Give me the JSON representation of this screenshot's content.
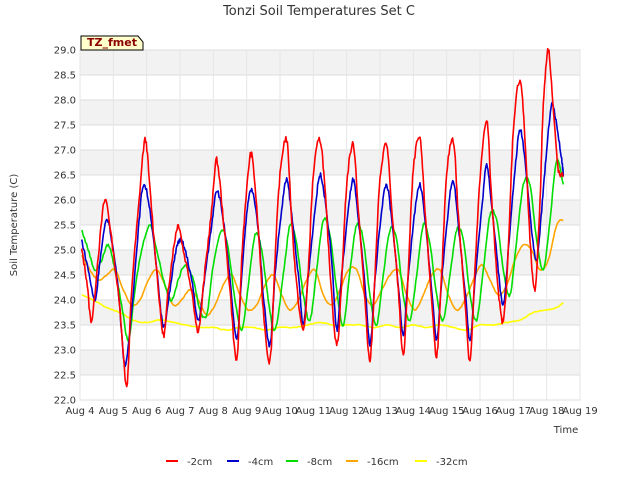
{
  "chart_data": {
    "type": "line",
    "title": "Tonzi Soil Temperatures Set C",
    "xlabel": "Time",
    "ylabel": "Soil Temperature (C)",
    "badge": "TZ_fmet",
    "x_tick_labels": [
      "Aug 4",
      "Aug 5",
      "Aug 6",
      "Aug 7",
      "Aug 8",
      "Aug 9",
      "Aug 10",
      "Aug 11",
      "Aug 12",
      "Aug 13",
      "Aug 14",
      "Aug 15",
      "Aug 16",
      "Aug 17",
      "Aug 18",
      "Aug 19"
    ],
    "xlim": [
      4,
      19
    ],
    "ylim": [
      22.0,
      29.0
    ],
    "y_ticks": [
      22.0,
      22.5,
      23.0,
      23.5,
      24.0,
      24.5,
      25.0,
      25.5,
      26.0,
      26.5,
      27.0,
      27.5,
      28.0,
      28.5,
      29.0
    ],
    "y_tick_labels": [
      "22.0",
      "22.5",
      "23.0",
      "23.5",
      "24.0",
      "24.5",
      "25.0",
      "25.5",
      "26.0",
      "26.5",
      "27.0",
      "27.5",
      "28.0",
      "28.5",
      "29.0"
    ],
    "grid": true,
    "legend_position": "bottom",
    "series": [
      {
        "name": "-2cm",
        "color": "#ff0000",
        "x": [
          4.05,
          4.2,
          4.35,
          4.55,
          4.75,
          4.95,
          5.2,
          5.4,
          5.55,
          5.75,
          5.95,
          6.1,
          6.3,
          6.5,
          6.65,
          6.8,
          6.95,
          7.1,
          7.35,
          7.55,
          7.75,
          7.95,
          8.1,
          8.3,
          8.5,
          8.7,
          8.85,
          9.0,
          9.15,
          9.35,
          9.5,
          9.7,
          9.85,
          10.0,
          10.2,
          10.35,
          10.5,
          10.7,
          10.85,
          11.0,
          11.2,
          11.35,
          11.5,
          11.7,
          11.85,
          12.0,
          12.2,
          12.35,
          12.55,
          12.7,
          12.85,
          13.0,
          13.2,
          13.35,
          13.55,
          13.7,
          13.85,
          14.0,
          14.2,
          14.35,
          14.55,
          14.7,
          14.85,
          15.0,
          15.2,
          15.35,
          15.55,
          15.7,
          15.85,
          16.0,
          16.2,
          16.35,
          16.55,
          16.7,
          16.85,
          17.0,
          17.2,
          17.35,
          17.5,
          17.65,
          17.8,
          17.9,
          18.05,
          18.2,
          18.35,
          18.5
        ],
        "y": [
          25.0,
          24.4,
          23.6,
          24.9,
          26.0,
          25.2,
          23.8,
          22.3,
          24.2,
          25.8,
          27.2,
          26.2,
          24.6,
          23.3,
          24.2,
          25.0,
          25.5,
          25.0,
          24.2,
          23.4,
          24.6,
          25.8,
          26.8,
          25.6,
          24.2,
          22.8,
          24.8,
          26.2,
          26.9,
          25.4,
          23.8,
          22.8,
          24.8,
          26.5,
          27.2,
          25.6,
          24.3,
          23.4,
          24.6,
          26.5,
          27.2,
          26.2,
          24.6,
          23.1,
          24.4,
          26.3,
          27.1,
          25.8,
          24.0,
          22.8,
          24.5,
          26.4,
          27.1,
          25.8,
          24.2,
          22.9,
          24.6,
          26.6,
          27.2,
          25.8,
          24.0,
          22.9,
          24.5,
          26.5,
          27.2,
          25.7,
          24.0,
          22.8,
          24.6,
          26.4,
          27.6,
          26.0,
          24.2,
          23.6,
          25.0,
          27.4,
          28.4,
          27.2,
          25.2,
          24.2,
          26.0,
          27.9,
          29.0,
          27.8,
          26.6,
          26.5
        ]
      },
      {
        "name": "-4cm",
        "color": "#0000cc",
        "x": [
          4.05,
          4.25,
          4.45,
          4.6,
          4.8,
          4.95,
          5.15,
          5.35,
          5.55,
          5.75,
          5.9,
          6.1,
          6.3,
          6.5,
          6.7,
          6.85,
          7.0,
          7.15,
          7.35,
          7.55,
          7.75,
          7.95,
          8.1,
          8.3,
          8.5,
          8.7,
          8.85,
          9.0,
          9.15,
          9.35,
          9.5,
          9.7,
          9.85,
          10.05,
          10.2,
          10.35,
          10.55,
          10.7,
          10.85,
          11.05,
          11.2,
          11.35,
          11.55,
          11.7,
          11.85,
          12.05,
          12.2,
          12.35,
          12.55,
          12.7,
          12.85,
          13.05,
          13.2,
          13.35,
          13.55,
          13.7,
          13.85,
          14.05,
          14.2,
          14.35,
          14.55,
          14.7,
          14.85,
          15.05,
          15.2,
          15.35,
          15.55,
          15.7,
          15.85,
          16.05,
          16.2,
          16.35,
          16.55,
          16.7,
          16.85,
          17.05,
          17.2,
          17.35,
          17.55,
          17.7,
          17.85,
          18.0,
          18.15,
          18.3,
          18.45,
          18.5
        ],
        "y": [
          25.2,
          24.6,
          24.0,
          24.8,
          25.6,
          25.2,
          24.2,
          22.7,
          23.8,
          25.4,
          26.3,
          25.8,
          24.6,
          23.5,
          24.2,
          24.9,
          25.2,
          25.0,
          24.4,
          23.6,
          24.5,
          25.5,
          26.2,
          25.6,
          24.4,
          23.2,
          24.5,
          25.7,
          26.2,
          25.4,
          24.1,
          23.1,
          24.5,
          25.8,
          26.4,
          25.7,
          24.5,
          23.5,
          24.5,
          25.8,
          26.5,
          26.0,
          24.8,
          23.4,
          24.5,
          25.8,
          26.4,
          25.6,
          24.3,
          23.1,
          24.4,
          25.8,
          26.3,
          25.6,
          24.3,
          23.3,
          24.5,
          25.8,
          26.3,
          25.6,
          24.2,
          23.2,
          24.4,
          25.8,
          26.4,
          25.5,
          24.2,
          23.2,
          24.4,
          25.8,
          26.7,
          25.9,
          24.6,
          23.9,
          25.0,
          26.6,
          27.4,
          26.8,
          25.4,
          24.8,
          25.8,
          27.0,
          27.9,
          27.5,
          26.8,
          26.5
        ]
      },
      {
        "name": "-8cm",
        "color": "#00dd00",
        "x": [
          4.05,
          4.25,
          4.45,
          4.65,
          4.85,
          5.05,
          5.25,
          5.45,
          5.65,
          5.85,
          6.1,
          6.3,
          6.55,
          6.75,
          6.95,
          7.15,
          7.4,
          7.6,
          7.8,
          8.0,
          8.25,
          8.45,
          8.65,
          8.85,
          9.05,
          9.25,
          9.45,
          9.65,
          9.85,
          10.1,
          10.3,
          10.5,
          10.7,
          10.9,
          11.1,
          11.3,
          11.5,
          11.7,
          11.9,
          12.1,
          12.3,
          12.5,
          12.7,
          12.9,
          13.1,
          13.3,
          13.5,
          13.7,
          13.9,
          14.1,
          14.3,
          14.5,
          14.7,
          14.9,
          15.1,
          15.3,
          15.5,
          15.7,
          15.9,
          16.1,
          16.3,
          16.5,
          16.7,
          16.9,
          17.1,
          17.3,
          17.5,
          17.7,
          17.9,
          18.1,
          18.3,
          18.5
        ],
        "y": [
          25.4,
          25.0,
          24.6,
          24.8,
          25.1,
          24.6,
          23.9,
          23.2,
          24.2,
          25.0,
          25.5,
          25.0,
          24.3,
          24.0,
          24.4,
          24.7,
          24.4,
          23.8,
          23.7,
          24.7,
          25.4,
          25.0,
          24.0,
          23.4,
          24.3,
          25.3,
          25.0,
          24.0,
          23.4,
          24.5,
          25.5,
          25.1,
          24.1,
          23.6,
          24.6,
          25.6,
          25.3,
          24.2,
          23.5,
          24.6,
          25.5,
          25.2,
          24.1,
          23.5,
          24.5,
          25.4,
          25.2,
          24.1,
          23.6,
          24.5,
          25.5,
          25.1,
          24.1,
          23.6,
          24.5,
          25.4,
          25.2,
          24.1,
          23.6,
          24.6,
          25.7,
          25.6,
          24.6,
          24.1,
          25.2,
          26.3,
          26.3,
          25.2,
          24.6,
          25.6,
          26.8,
          26.3
        ]
      },
      {
        "name": "-16cm",
        "color": "#ffa500",
        "x": [
          4.05,
          4.3,
          4.55,
          4.8,
          5.05,
          5.3,
          5.55,
          5.8,
          6.05,
          6.3,
          6.55,
          6.8,
          7.05,
          7.3,
          7.55,
          7.8,
          8.05,
          8.3,
          8.55,
          8.8,
          9.05,
          9.3,
          9.55,
          9.8,
          10.05,
          10.3,
          10.55,
          10.8,
          11.05,
          11.3,
          11.55,
          11.8,
          12.05,
          12.3,
          12.55,
          12.8,
          13.05,
          13.3,
          13.55,
          13.8,
          14.05,
          14.3,
          14.55,
          14.8,
          15.05,
          15.3,
          15.55,
          15.8,
          16.05,
          16.3,
          16.55,
          16.8,
          17.05,
          17.3,
          17.55,
          17.8,
          18.05,
          18.3,
          18.5
        ],
        "y": [
          24.9,
          24.6,
          24.4,
          24.5,
          24.6,
          24.2,
          23.9,
          24.0,
          24.4,
          24.6,
          24.3,
          23.9,
          24.0,
          24.2,
          24.0,
          23.7,
          23.9,
          24.3,
          24.5,
          24.1,
          23.8,
          23.9,
          24.3,
          24.5,
          24.1,
          23.8,
          24.0,
          24.4,
          24.6,
          24.1,
          23.9,
          24.2,
          24.6,
          24.6,
          24.1,
          23.9,
          24.2,
          24.5,
          24.6,
          24.1,
          23.8,
          24.1,
          24.5,
          24.6,
          24.1,
          23.8,
          24.0,
          24.4,
          24.7,
          24.4,
          24.1,
          24.3,
          24.8,
          25.1,
          25.0,
          24.6,
          24.8,
          25.5,
          25.6
        ]
      },
      {
        "name": "-32cm",
        "color": "#ffff00",
        "x": [
          4.05,
          4.4,
          4.8,
          5.2,
          5.6,
          6.0,
          6.4,
          6.8,
          7.2,
          7.6,
          8.0,
          8.4,
          8.8,
          9.2,
          9.6,
          10.0,
          10.4,
          10.8,
          11.2,
          11.6,
          12.0,
          12.4,
          12.8,
          13.2,
          13.6,
          14.0,
          14.4,
          14.8,
          15.2,
          15.6,
          16.0,
          16.4,
          16.8,
          17.2,
          17.6,
          18.0,
          18.3,
          18.5
        ],
        "y": [
          24.1,
          24.0,
          23.85,
          23.75,
          23.6,
          23.55,
          23.6,
          23.55,
          23.5,
          23.45,
          23.45,
          23.4,
          23.45,
          23.45,
          23.4,
          23.45,
          23.45,
          23.5,
          23.55,
          23.5,
          23.5,
          23.5,
          23.45,
          23.5,
          23.45,
          23.5,
          23.45,
          23.5,
          23.45,
          23.4,
          23.5,
          23.5,
          23.55,
          23.6,
          23.75,
          23.8,
          23.85,
          23.95
        ]
      }
    ]
  }
}
